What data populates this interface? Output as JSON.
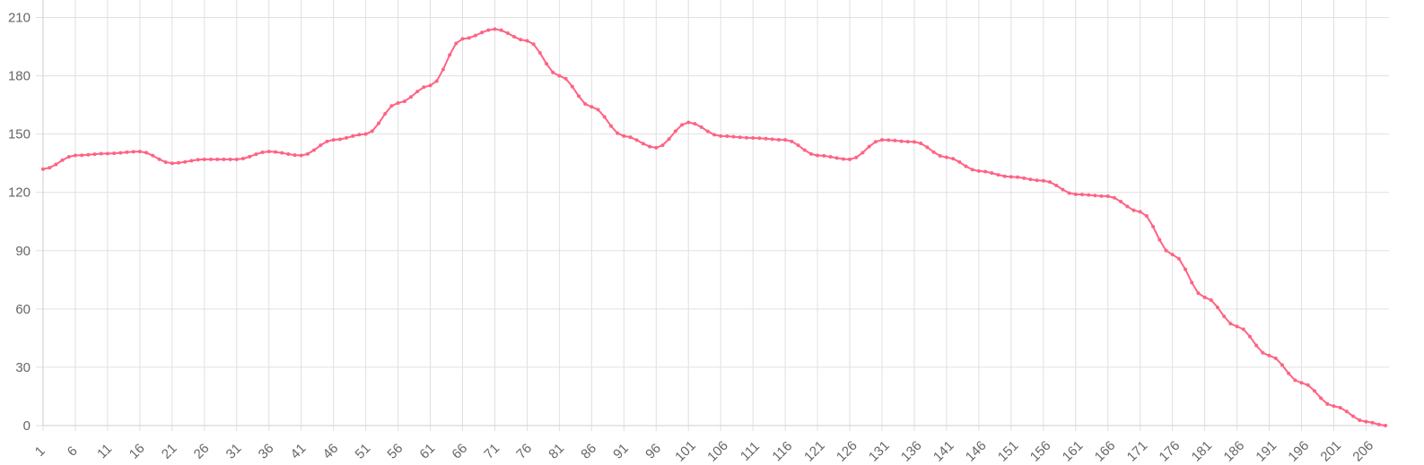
{
  "chart_data": {
    "type": "line",
    "title": "",
    "xlabel": "",
    "ylabel": "",
    "ylim": [
      0,
      219
    ],
    "y_ticks": [
      0,
      30,
      60,
      90,
      120,
      150,
      180,
      210
    ],
    "x_range": [
      1,
      209
    ],
    "x_tick_labels": [
      "1",
      "6",
      "11",
      "16",
      "21",
      "26",
      "31",
      "36",
      "41",
      "46",
      "51",
      "56",
      "61",
      "66",
      "71",
      "76",
      "81",
      "86",
      "91",
      "96",
      "101",
      "106",
      "111",
      "116",
      "121",
      "126",
      "131",
      "136",
      "141",
      "146",
      "151",
      "156",
      "161",
      "166",
      "171",
      "176",
      "181",
      "186",
      "191",
      "196",
      "201",
      "206"
    ],
    "grid": true,
    "legend": "none",
    "series": [
      {
        "color": "#ff6384",
        "x": [
          1,
          6,
          11,
          16,
          21,
          26,
          31,
          36,
          41,
          46,
          51,
          56,
          61,
          66,
          71,
          76,
          81,
          86,
          91,
          96,
          101,
          106,
          111,
          116,
          121,
          126,
          131,
          136,
          141,
          146,
          151,
          156,
          161,
          166,
          171,
          176,
          181,
          186,
          191,
          196,
          201,
          206,
          209
        ],
        "values": [
          132,
          139,
          140,
          141,
          135,
          137,
          137,
          141,
          139,
          147,
          150,
          166,
          175,
          199,
          204,
          198,
          180,
          164,
          149,
          143,
          156,
          149,
          148,
          147,
          139,
          137,
          147,
          146,
          138,
          131,
          128,
          126,
          119,
          118,
          110,
          88,
          66,
          51,
          36,
          22,
          10,
          2,
          0
        ]
      }
    ]
  }
}
